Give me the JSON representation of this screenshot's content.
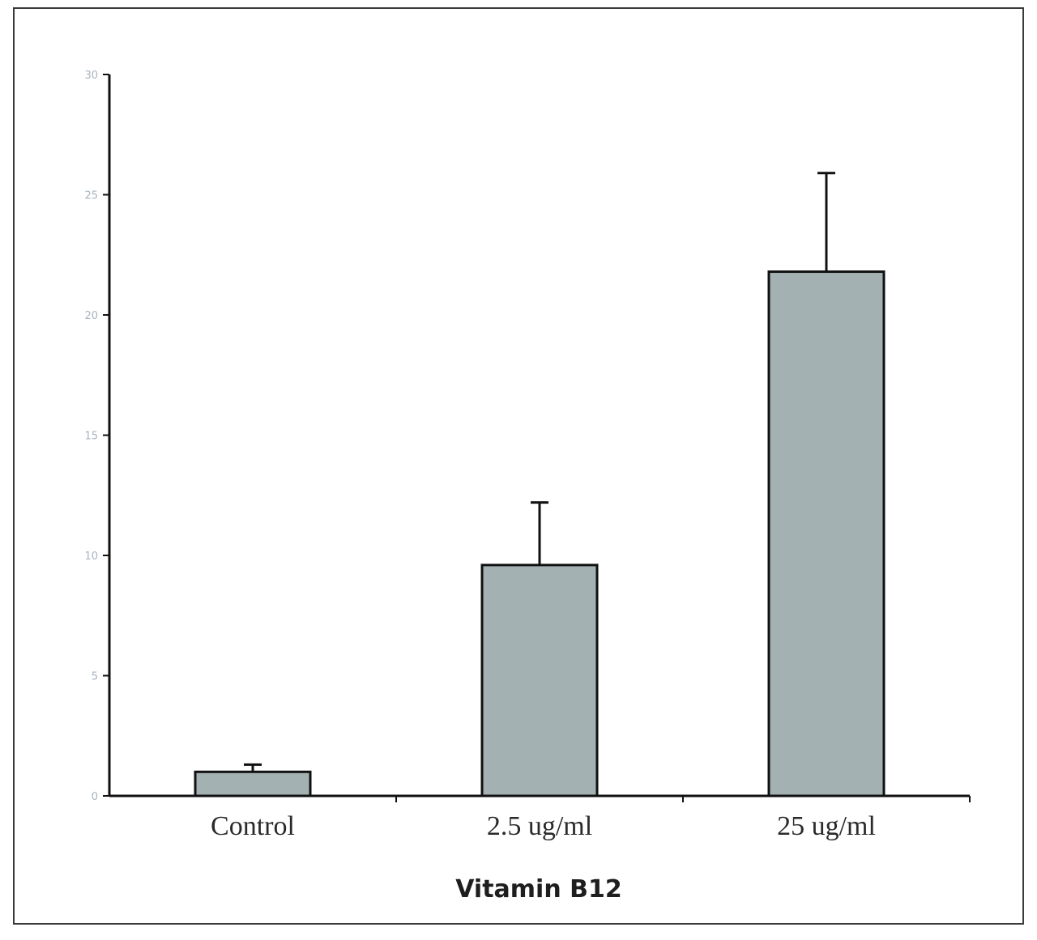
{
  "chart_data": {
    "type": "bar",
    "title": "",
    "xlabel": "Vitamin B12",
    "ylabel": "",
    "categories": [
      "Control",
      "2.5 ug/ml",
      "25 ug/ml"
    ],
    "values": [
      1.0,
      9.6,
      21.8
    ],
    "error_upper": [
      1.3,
      12.2,
      25.9
    ],
    "ylim": [
      0,
      30
    ],
    "yticks": [
      0,
      5,
      10,
      15,
      20,
      25,
      30
    ],
    "ytick_labels": [
      "0",
      "5",
      "10",
      "15",
      "20",
      "25",
      "30"
    ],
    "grid": false,
    "legend": "none",
    "colors": {
      "bar_fill": "#a4b1b2",
      "bar_stroke": "#111111",
      "axis": "#111111",
      "tick_label": "#a9b4bf"
    }
  }
}
